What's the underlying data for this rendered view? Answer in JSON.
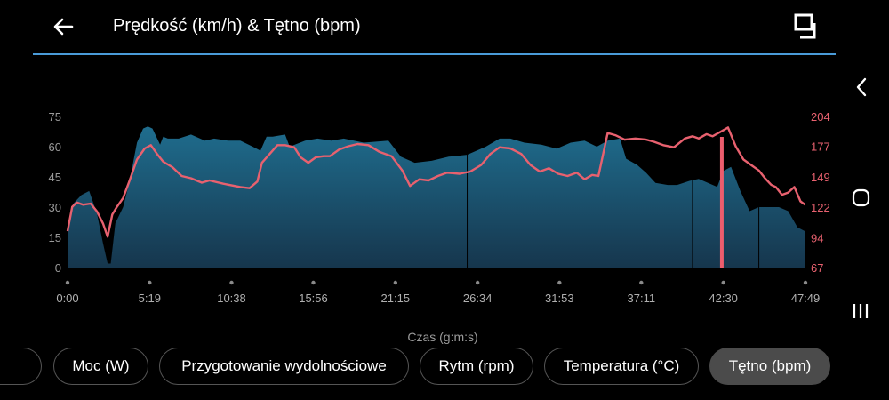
{
  "header": {
    "title": "Prędkość (km/h) & Tętno (bpm)",
    "back_icon": "arrow-left-icon",
    "fullscreen_icon": "fullscreen-toggle-icon",
    "accent_color": "#4a9bd8"
  },
  "system_nav": {
    "back_icon": "chevron-left-icon",
    "home_icon": "circle-home-icon",
    "recents_icon": "recents-icon"
  },
  "chart": {
    "x_axis_title": "Czas (g:m:s)"
  },
  "chart_data": {
    "type": "area",
    "x_ticks": [
      "0:00",
      "5:19",
      "10:38",
      "15:56",
      "21:15",
      "26:34",
      "31:53",
      "37:11",
      "42:30",
      "47:49"
    ],
    "x_tick_minutes": [
      0,
      5.32,
      10.63,
      15.93,
      21.25,
      26.57,
      31.88,
      37.18,
      42.5,
      47.82
    ],
    "left_axis": {
      "ticks": [
        "0",
        "15",
        "30",
        "45",
        "60",
        "75"
      ],
      "range": [
        0,
        75
      ],
      "color": "#9a9a9a"
    },
    "right_axis": {
      "ticks": [
        "67",
        "94",
        "122",
        "149",
        "177",
        "204"
      ],
      "range": [
        67,
        204
      ],
      "color": "#e8616f"
    },
    "series": [
      {
        "name": "Prędkość (km/h)",
        "style": "area",
        "axis": "left",
        "color": "#1e5f7e",
        "x": [
          0,
          0.4,
          0.9,
          1.4,
          1.9,
          2.3,
          2.6,
          2.8,
          3.1,
          3.6,
          4.0,
          4.5,
          4.9,
          5.2,
          5.5,
          6.0,
          6.2,
          6.5,
          7.2,
          8.0,
          8.9,
          9.5,
          10.4,
          11.2,
          12.0,
          12.5,
          12.9,
          13.3,
          14.1,
          14.4,
          15.4,
          16.2,
          17.1,
          17.9,
          19.2,
          20.8,
          21.6,
          22.5,
          23.6,
          24.7,
          25.9,
          27.1,
          28.0,
          28.7,
          29.6,
          30.7,
          31.7,
          32.6,
          33.5,
          34.3,
          35.0,
          35.8,
          36.2,
          36.9,
          37.5,
          38.1,
          38.9,
          39.5,
          40.3,
          40.9,
          41.5,
          42.1,
          42.5,
          43.0,
          43.6,
          44.2,
          44.8,
          45.3,
          46.1,
          46.7,
          47.3,
          47.8
        ],
        "values": [
          17,
          32,
          36,
          38,
          27,
          12,
          2,
          2,
          22,
          30,
          42,
          62,
          69,
          70,
          69,
          61,
          65,
          64,
          64,
          66,
          63,
          64,
          63,
          63,
          60,
          58,
          65,
          65,
          66,
          60,
          63,
          64,
          63,
          64,
          62,
          63,
          55,
          52,
          53,
          55,
          56,
          60,
          64,
          64,
          62,
          61,
          59,
          62,
          63,
          60,
          63,
          64,
          54,
          51,
          47,
          42,
          41,
          41,
          43,
          44,
          42,
          40,
          48,
          50,
          38,
          28,
          30,
          30,
          30,
          28,
          20,
          18
        ]
      },
      {
        "name": "Tętno (bpm)",
        "style": "line",
        "axis": "right",
        "color": "#e8616f",
        "x": [
          0,
          0.3,
          0.6,
          1.0,
          1.5,
          1.9,
          2.3,
          2.6,
          2.9,
          3.2,
          3.6,
          4.0,
          4.5,
          5.0,
          5.4,
          5.8,
          6.2,
          6.8,
          7.4,
          8.0,
          8.7,
          9.2,
          10.1,
          11.2,
          11.8,
          12.3,
          12.6,
          13.1,
          13.6,
          14.1,
          14.7,
          15.1,
          15.6,
          16.1,
          16.6,
          17.0,
          17.6,
          18.2,
          18.8,
          19.5,
          20.2,
          21.0,
          21.7,
          22.2,
          22.8,
          23.4,
          24.0,
          24.6,
          25.4,
          26.1,
          26.8,
          27.4,
          28.0,
          28.7,
          29.4,
          30.0,
          30.6,
          31.2,
          31.8,
          32.4,
          33.0,
          33.5,
          34.0,
          34.4,
          35.0,
          35.5,
          36.1,
          36.8,
          37.5,
          38.0,
          38.6,
          39.3,
          40.0,
          40.5,
          40.9,
          41.4,
          41.8,
          42.3,
          42.8,
          43.3,
          43.8,
          44.3,
          44.8,
          45.2,
          45.6,
          45.9,
          46.3,
          46.7,
          47.1,
          47.5,
          47.8
        ],
        "values": [
          100,
          122,
          126,
          124,
          125,
          118,
          107,
          95,
          115,
          122,
          130,
          145,
          165,
          175,
          178,
          170,
          163,
          158,
          150,
          148,
          144,
          146,
          143,
          140,
          139,
          145,
          162,
          170,
          178,
          178,
          176,
          167,
          162,
          167,
          168,
          168,
          174,
          177,
          179,
          178,
          172,
          168,
          155,
          141,
          147,
          146,
          150,
          153,
          152,
          154,
          160,
          170,
          176,
          175,
          170,
          160,
          154,
          157,
          152,
          150,
          153,
          147,
          151,
          150,
          189,
          187,
          183,
          184,
          183,
          181,
          178,
          176,
          184,
          186,
          184,
          188,
          186,
          190,
          194,
          177,
          165,
          160,
          155,
          148,
          142,
          140,
          133,
          135,
          140,
          127,
          124
        ]
      }
    ],
    "grid": false,
    "legend": "none"
  },
  "chips": [
    {
      "label": "",
      "active": false
    },
    {
      "label": "Moc (W)",
      "active": false
    },
    {
      "label": "Przygotowanie wydolnościowe",
      "active": false
    },
    {
      "label": "Rytm (rpm)",
      "active": false
    },
    {
      "label": "Temperatura (°C)",
      "active": false
    },
    {
      "label": "Tętno (bpm)",
      "active": true
    }
  ]
}
